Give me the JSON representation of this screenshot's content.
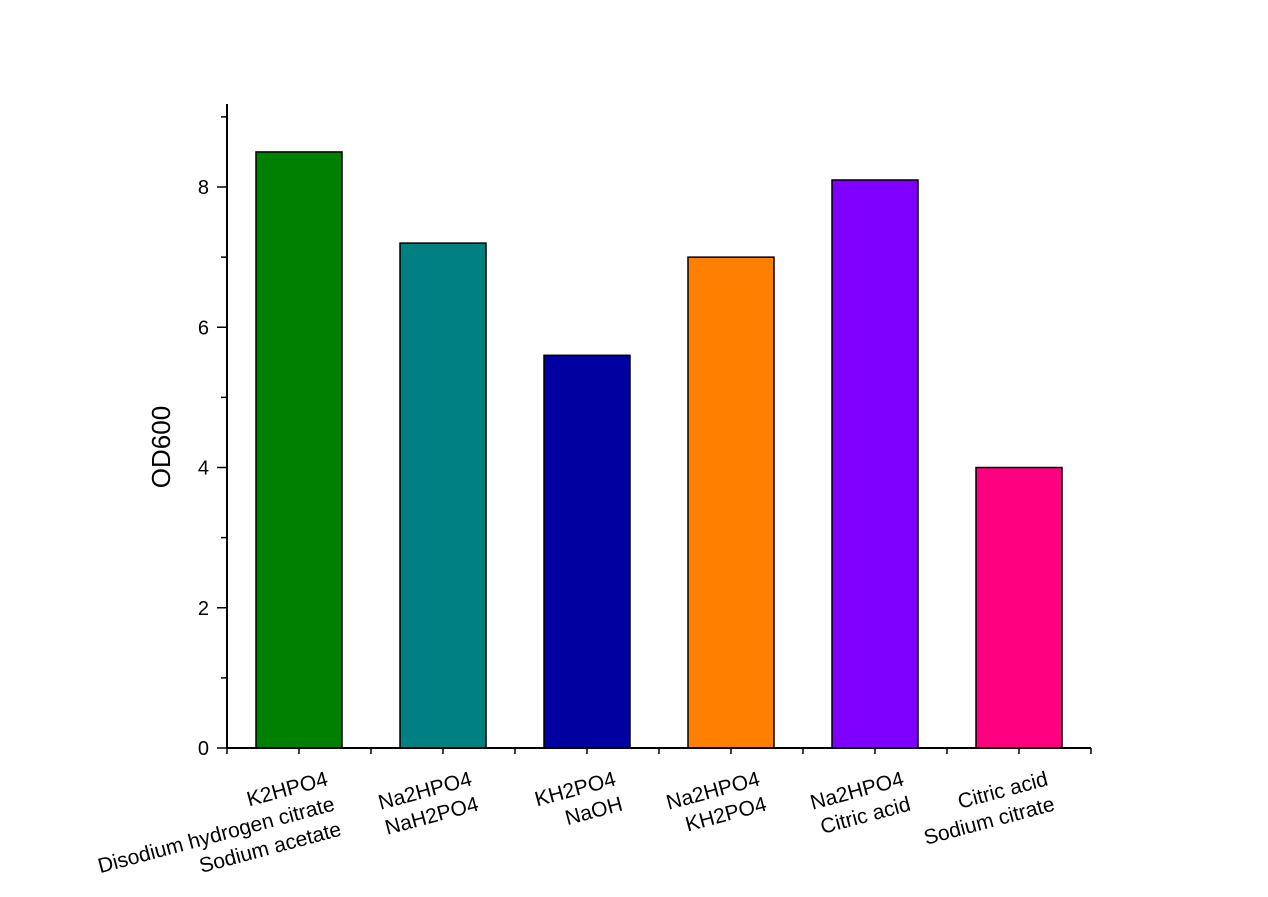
{
  "chart_data": {
    "type": "bar",
    "title": "",
    "xlabel": "",
    "ylabel": "OD600",
    "ylim": [
      0,
      9.2
    ],
    "yticks": [
      0,
      2,
      4,
      6,
      8
    ],
    "categories": [
      [
        "K2HPO4",
        "Disodium hydrogen citrate",
        "Sodium acetate"
      ],
      [
        "Na2HPO4",
        "NaH2PO4"
      ],
      [
        "KH2PO4",
        "NaOH"
      ],
      [
        "Na2HPO4",
        "KH2PO4"
      ],
      [
        "Na2HPO4",
        "Citric acid"
      ],
      [
        "Citric acid",
        "Sodium citrate"
      ]
    ],
    "values": [
      8.5,
      7.2,
      5.6,
      7.0,
      8.1,
      4.0
    ],
    "colors": [
      "#008000",
      "#008080",
      "#0000A0",
      "#FF8000",
      "#8000FF",
      "#FF0080"
    ],
    "grid": false,
    "legend": "none"
  }
}
